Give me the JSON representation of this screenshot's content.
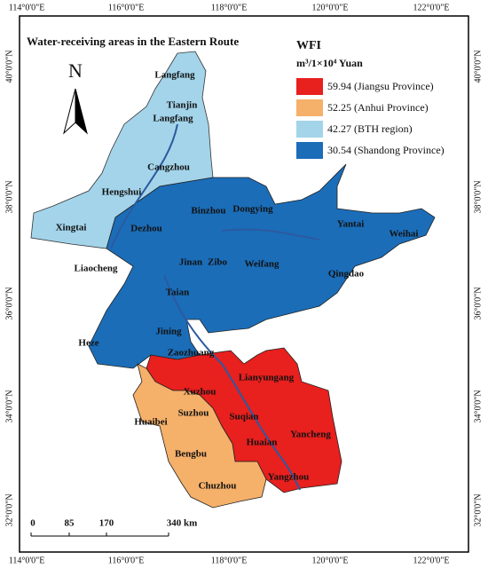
{
  "title": "Water-receiving areas in the Eastern Route",
  "legend": {
    "title": "WFI",
    "unit": "m³/1×10⁴ Yuan",
    "items": [
      {
        "text": "59.94 (Jiangsu Province)",
        "color": "#e8201e"
      },
      {
        "text": "52.25 (Anhui Province)",
        "color": "#f5b06a"
      },
      {
        "text": "42.27 (BTH region)",
        "color": "#a3d4ea"
      },
      {
        "text": "30.54 (Shandong Province)",
        "color": "#1b6db8"
      }
    ]
  },
  "north": "N",
  "longitudes": [
    "114°0'0\"E",
    "116°0'0\"E",
    "118°0'0\"E",
    "120°0'0\"E",
    "122°0'0\"E"
  ],
  "latitudes": [
    "40°0'0\"N",
    "38°0'0\"N",
    "36°0'0\"N",
    "34°0'0\"N",
    "32°0'0\"N"
  ],
  "scale": [
    "0",
    "85",
    "170",
    "340 km"
  ],
  "cities": [
    "Langfang",
    "Tianjin",
    "Langfang",
    "Cangzhou",
    "Hengshui",
    "Xingtai",
    "Binzhou",
    "Dongying",
    "Dezhou",
    "Jinan",
    "Zibo",
    "Weifang",
    "Liaocheng",
    "Taian",
    "Yantai",
    "Weihai",
    "Qingdao",
    "Heze",
    "Jining",
    "Zaozhuang",
    "Lianyungang",
    "Xuzhou",
    "Suzhou",
    "Suqian",
    "Huaibei",
    "Huaian",
    "Yancheng",
    "Bengbu",
    "Chuzhou",
    "Yangzhou"
  ]
}
